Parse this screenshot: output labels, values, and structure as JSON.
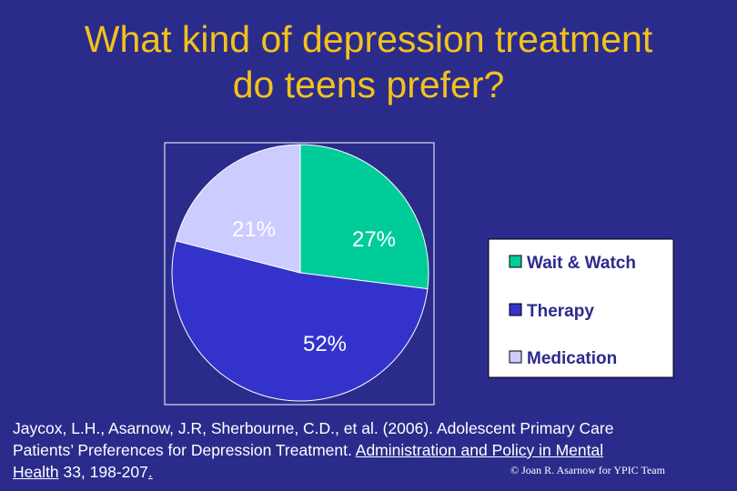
{
  "title": {
    "line1": "What kind of depression treatment",
    "line2": "do teens prefer?"
  },
  "chart_data": {
    "type": "pie",
    "title": "",
    "slices": [
      {
        "label": "Wait & Watch",
        "value": 27,
        "display": "27%",
        "color": "#00cc99"
      },
      {
        "label": "Therapy",
        "value": 52,
        "display": "52%",
        "color": "#3333cc"
      },
      {
        "label": "Medication",
        "value": 21,
        "display": "21%",
        "color": "#ccccff"
      }
    ],
    "start_angle_deg": 0,
    "direction": "clockwise",
    "legend_position": "right",
    "legend": [
      "Wait & Watch",
      "Therapy",
      "Medication"
    ]
  },
  "citation": {
    "line1": "Jaycox, L.H., Asarnow, J.R, Sherbourne, C.D., et al.  (2006). Adolescent Primary Care",
    "line2_pre": "Patients’ Preferences for Depression Treatment. ",
    "line2_journal": "Administration and Policy in Mental",
    "line3_journal": "Health",
    "line3_rest": " 33, 198-207",
    "line3_end": "."
  },
  "copyright": "© Joan R. Asarnow for YPIC Team",
  "colors": {
    "background": "#2b2b8c",
    "title": "#f2c21b",
    "text": "#ffffff",
    "legend_box": "#ffffff"
  }
}
